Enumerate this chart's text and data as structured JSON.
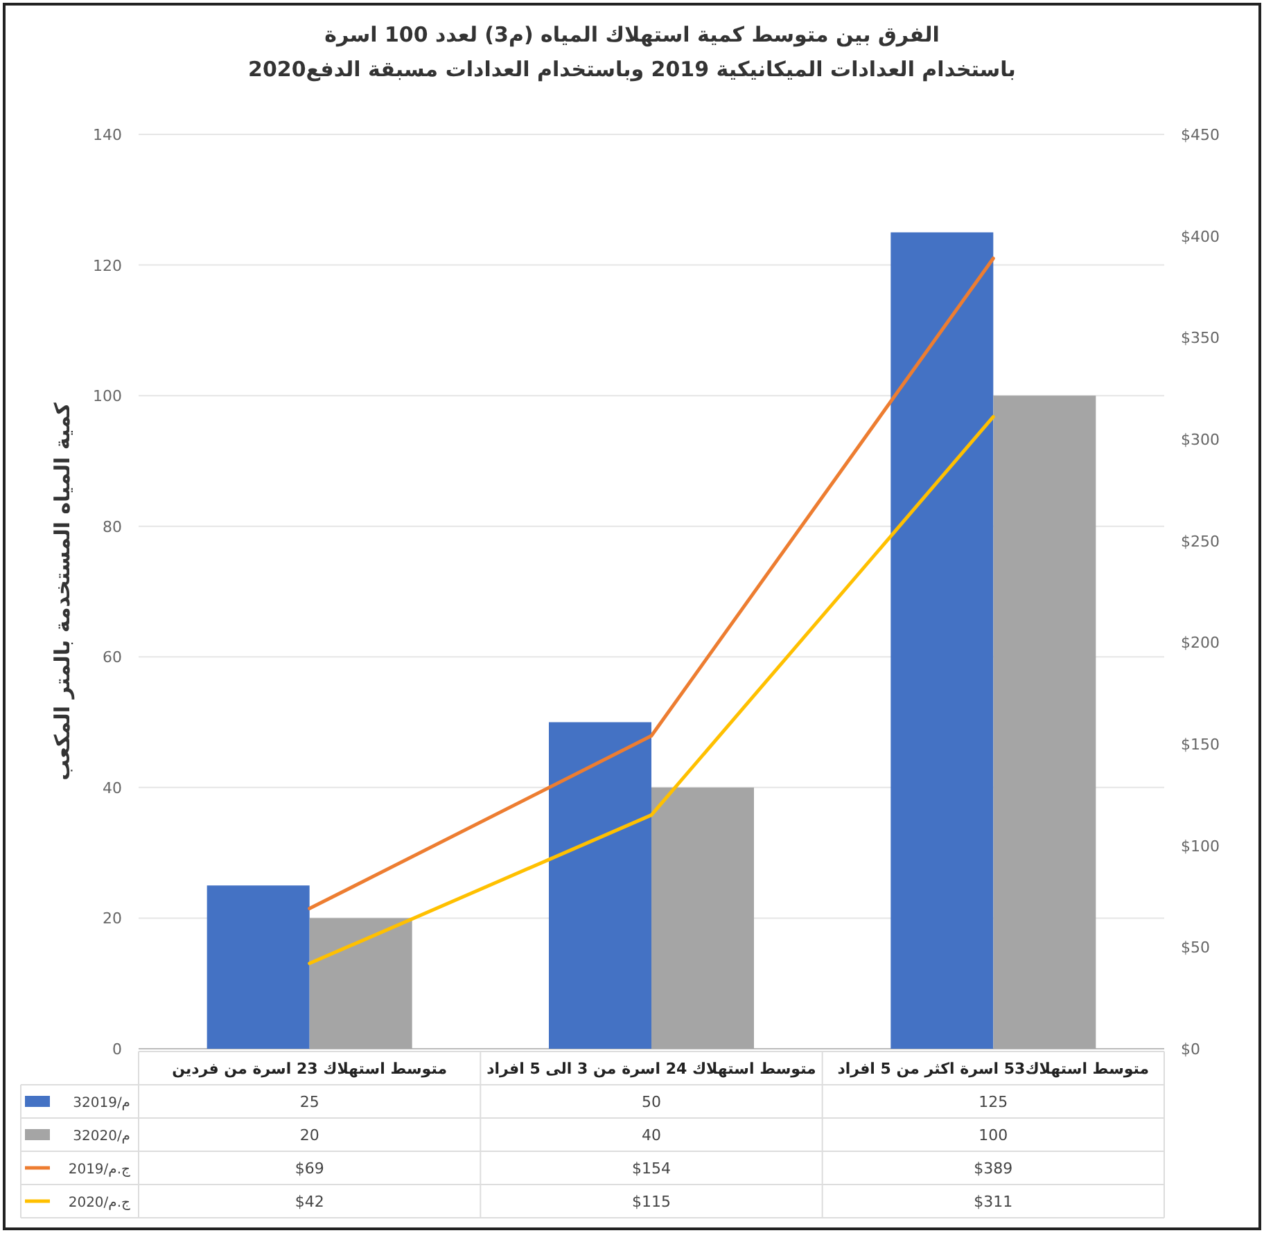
{
  "chart_data": {
    "type": "bar",
    "title": "الفرق بين متوسط كمية استهلاك المياه (م3) لعدد 100 اسرة",
    "subtitle": "باستخدام العدادات الميكانيكية 2019 وباستخدام العدادات مسبقة الدفع2020",
    "ylabel": "كمية المياه المستخدمة بالمتر المكعب",
    "categories": [
      "متوسط استهلاك 23 اسرة من فردين",
      "متوسط استهلاك 24 اسرة من 3 الى 5 افراد",
      "متوسط استهلاك53 اسرة اكثر من 5 افراد"
    ],
    "series": [
      {
        "name": "3م/2019",
        "color": "#4472c4",
        "values": [
          25,
          50,
          125
        ],
        "value_labels": [
          "25",
          "50",
          "125"
        ]
      },
      {
        "name": "3م/2020",
        "color": "#a5a5a5",
        "values": [
          20,
          40,
          100
        ],
        "value_labels": [
          "20",
          "40",
          "100"
        ]
      },
      {
        "name": "2019/ج.م",
        "type": "line",
        "axis": "y2",
        "color": "#ed7d31",
        "values": [
          69,
          154,
          389
        ],
        "value_labels": [
          "$69",
          "$154",
          "$389"
        ]
      },
      {
        "name": "2020/ج.م",
        "type": "line",
        "axis": "y2",
        "color": "#ffc000",
        "values": [
          42,
          115,
          311
        ],
        "value_labels": [
          "$42",
          "$115",
          "$311"
        ]
      }
    ],
    "ylim": [
      0,
      140
    ],
    "yticks": [
      0,
      20,
      40,
      60,
      80,
      100,
      120,
      140
    ],
    "y2lim": [
      0,
      450
    ],
    "y2ticks": [
      {
        "value": 0,
        "label": "$0"
      },
      {
        "value": 50,
        "label": "$50"
      },
      {
        "value": 100,
        "label": "$100"
      },
      {
        "value": 150,
        "label": "$150"
      },
      {
        "value": 200,
        "label": "$200"
      },
      {
        "value": 250,
        "label": "$250"
      },
      {
        "value": 300,
        "label": "$300"
      },
      {
        "value": 350,
        "label": "$350"
      },
      {
        "value": 400,
        "label": "$400"
      },
      {
        "value": 450,
        "label": "$450"
      }
    ],
    "grid": "y",
    "legend": "bottom",
    "marker": "none",
    "line_style": "solid"
  }
}
